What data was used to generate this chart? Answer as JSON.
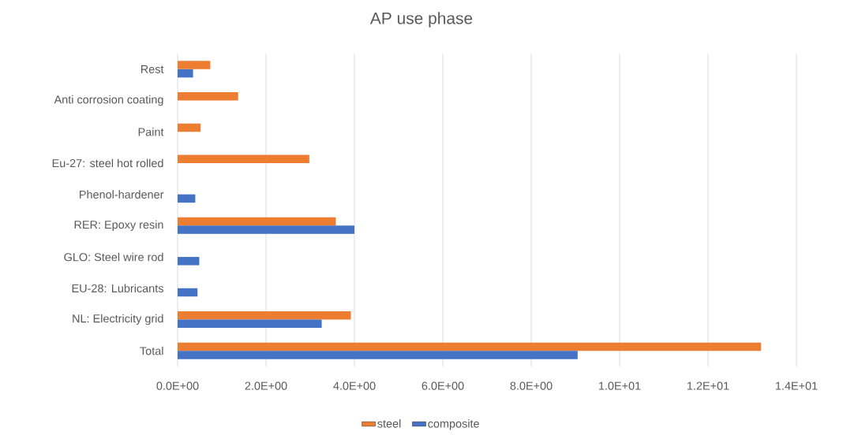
{
  "chart_data": {
    "type": "bar",
    "title": "AP use phase",
    "orientation": "horizontal",
    "categories": [
      "Rest",
      "Anti corrosion coating",
      "Paint",
      "Eu-27: steel hot rolled",
      "Phenol-hardener",
      "RER: Epoxy resin",
      "GLO: Steel wire rod",
      "EU-28: Lubricants",
      "NL: Electricity grid",
      "Total"
    ],
    "series": [
      {
        "name": "steel",
        "color": "#ed7d31",
        "values": [
          0.74,
          1.37,
          0.52,
          2.98,
          null,
          3.58,
          null,
          null,
          3.92,
          13.2
        ]
      },
      {
        "name": "composite",
        "color": "#4472c4",
        "values": [
          0.35,
          null,
          null,
          null,
          0.4,
          4.0,
          0.49,
          0.45,
          3.26,
          9.05
        ]
      }
    ],
    "xlim": [
      0,
      14
    ],
    "xticks": [
      {
        "value": 0,
        "label": "0.0E+00"
      },
      {
        "value": 2,
        "label": "2.0E+00"
      },
      {
        "value": 4,
        "label": "4.0E+00"
      },
      {
        "value": 6,
        "label": "6.0E+00"
      },
      {
        "value": 8,
        "label": "8.0E+00"
      },
      {
        "value": 10,
        "label": "1.0E+01"
      },
      {
        "value": 12,
        "label": "1.2E+01"
      },
      {
        "value": 14,
        "label": "1.4E+01"
      }
    ],
    "grid": "x",
    "legend": "bottom"
  }
}
